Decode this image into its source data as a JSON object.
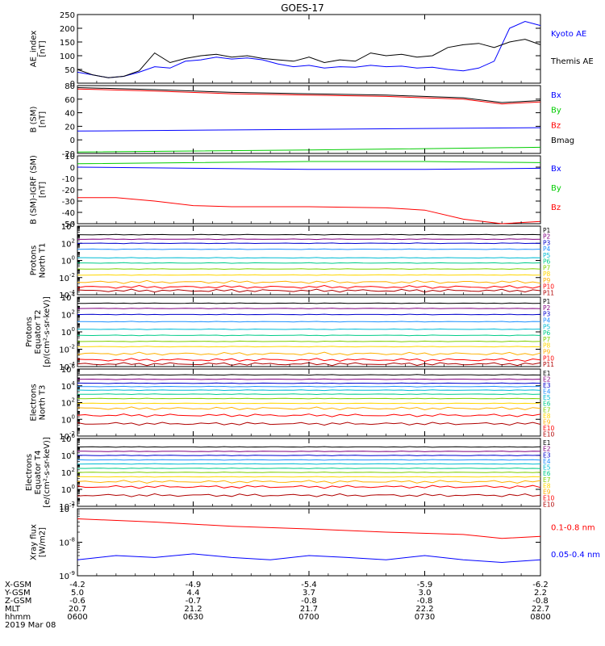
{
  "title": "GOES-17",
  "chart_data": [
    {
      "type": "line",
      "id": "ae",
      "ylabel": [
        "AE_index",
        "[nT]"
      ],
      "ylim": [
        0,
        250
      ],
      "yticks": [
        "0",
        "50",
        "100",
        "150",
        "200",
        "250"
      ],
      "series": [
        {
          "name": "Kyoto AE",
          "color": "#0000ff",
          "x": [
            0,
            4,
            8,
            12,
            16,
            20,
            24,
            28,
            32,
            36,
            40,
            44,
            48,
            52,
            56,
            60,
            64,
            68,
            72,
            76,
            80,
            84,
            88,
            92,
            96,
            100,
            104,
            108,
            112,
            116,
            120
          ],
          "values": [
            40,
            30,
            20,
            25,
            40,
            60,
            55,
            80,
            85,
            95,
            88,
            92,
            85,
            70,
            60,
            65,
            55,
            60,
            58,
            65,
            60,
            62,
            55,
            58,
            50,
            45,
            55,
            80,
            200,
            225,
            210
          ]
        },
        {
          "name": "Themis AE",
          "color": "#000000",
          "x": [
            0,
            4,
            8,
            12,
            16,
            20,
            24,
            28,
            32,
            36,
            40,
            44,
            48,
            52,
            56,
            60,
            64,
            68,
            72,
            76,
            80,
            84,
            88,
            92,
            96,
            100,
            104,
            108,
            112,
            116,
            120
          ],
          "values": [
            50,
            30,
            20,
            25,
            45,
            110,
            75,
            90,
            100,
            105,
            95,
            100,
            90,
            85,
            80,
            95,
            75,
            85,
            80,
            110,
            100,
            105,
            95,
            100,
            130,
            140,
            145,
            130,
            150,
            160,
            140
          ]
        }
      ]
    },
    {
      "type": "line",
      "id": "bsm",
      "ylabel": [
        "B (SM)",
        "[nT]"
      ],
      "ylim": [
        -20,
        80
      ],
      "yticks": [
        "-20",
        "0",
        "20",
        "40",
        "60",
        "80"
      ],
      "series": [
        {
          "name": "Bx",
          "color": "#0000ff",
          "x": [
            0,
            120
          ],
          "values": [
            13,
            18
          ]
        },
        {
          "name": "By",
          "color": "#00cc00",
          "x": [
            0,
            60,
            120
          ],
          "values": [
            -18,
            -15,
            -11
          ]
        },
        {
          "name": "Bz",
          "color": "#ff0000",
          "x": [
            0,
            20,
            40,
            60,
            80,
            100,
            110,
            120
          ],
          "values": [
            75,
            72,
            68,
            66,
            64,
            60,
            53,
            56
          ]
        },
        {
          "name": "Bmag",
          "color": "#000000",
          "x": [
            0,
            20,
            40,
            60,
            80,
            100,
            110,
            120
          ],
          "values": [
            77,
            74,
            70,
            68,
            66,
            62,
            55,
            58
          ]
        }
      ]
    },
    {
      "type": "line",
      "id": "bigrf",
      "ylabel": [
        "B (SM)-IGRF (SM)",
        "[nT]"
      ],
      "ylim": [
        -50,
        10
      ],
      "yticks": [
        "-50",
        "-40",
        "-30",
        "-20",
        "-10",
        "0",
        "10"
      ],
      "series": [
        {
          "name": "Bx",
          "color": "#0000ff",
          "x": [
            0,
            30,
            60,
            90,
            120
          ],
          "values": [
            0,
            -1,
            -2,
            -2,
            -1
          ]
        },
        {
          "name": "By",
          "color": "#00cc00",
          "x": [
            0,
            30,
            60,
            90,
            120
          ],
          "values": [
            3,
            4,
            5,
            5,
            4
          ]
        },
        {
          "name": "Bz",
          "color": "#ff0000",
          "x": [
            0,
            10,
            20,
            30,
            40,
            60,
            80,
            90,
            100,
            110,
            120
          ],
          "values": [
            -27,
            -27,
            -30,
            -34,
            -35,
            -35,
            -36,
            -38,
            -46,
            -50,
            -48
          ]
        }
      ]
    },
    {
      "type": "line",
      "id": "protonsT1",
      "ylabel": [
        "Protons",
        "North T1"
      ],
      "log": true,
      "ylim": [
        0.0001,
        10000
      ],
      "yticks": [
        "10^-4",
        "10^-2",
        "10^0",
        "10^2",
        "10^4"
      ],
      "channels": [
        {
          "name": "P1",
          "color": "#000000",
          "value": 1000
        },
        {
          "name": "P2",
          "color": "#800080",
          "value": 300
        },
        {
          "name": "P3",
          "color": "#0000cd",
          "value": 100
        },
        {
          "name": "P4",
          "color": "#1e90ff",
          "value": 20
        },
        {
          "name": "P5",
          "color": "#00bcd4",
          "value": 2
        },
        {
          "name": "P6",
          "color": "#00cc88",
          "value": 0.5
        },
        {
          "name": "P7",
          "color": "#7fd000",
          "value": 0.1
        },
        {
          "name": "P8",
          "color": "#ffd700",
          "value": 0.02
        },
        {
          "name": "P9",
          "color": "#ffb000",
          "value": 0.003
        },
        {
          "name": "P10",
          "color": "#ff0000",
          "value": 0.0008
        },
        {
          "name": "P11",
          "color": "#b00000",
          "value": 0.0003
        }
      ]
    },
    {
      "type": "line",
      "id": "protonsT2",
      "ylabel": [
        "Protons",
        "Equator T2",
        "[p/(cm²-s-sr-keV)]"
      ],
      "log": true,
      "ylim": [
        0.0001,
        10000
      ],
      "yticks": [
        "10^-4",
        "10^-2",
        "10^0",
        "10^2",
        "10^4"
      ],
      "channels": [
        {
          "name": "P1",
          "color": "#000000",
          "value": 2000
        },
        {
          "name": "P2",
          "color": "#800080",
          "value": 500
        },
        {
          "name": "P3",
          "color": "#0000cd",
          "value": 100
        },
        {
          "name": "P4",
          "color": "#1e90ff",
          "value": 15
        },
        {
          "name": "P5",
          "color": "#00bcd4",
          "value": 2
        },
        {
          "name": "P6",
          "color": "#00cc88",
          "value": 0.4
        },
        {
          "name": "P7",
          "color": "#7fd000",
          "value": 0.08
        },
        {
          "name": "P8",
          "color": "#ffd700",
          "value": 0.02
        },
        {
          "name": "P9",
          "color": "#ffb000",
          "value": 0.003
        },
        {
          "name": "P10",
          "color": "#ff0000",
          "value": 0.0006
        },
        {
          "name": "P11",
          "color": "#b00000",
          "value": 0.0002
        }
      ]
    },
    {
      "type": "line",
      "id": "electronsT3",
      "ylabel": [
        "Electrons",
        "North T3"
      ],
      "log": true,
      "ylim": [
        0.01,
        1000000
      ],
      "yticks": [
        "10^-2",
        "10^0",
        "10^2",
        "10^4",
        "10^6"
      ],
      "channels": [
        {
          "name": "E1",
          "color": "#000000",
          "value": 200000
        },
        {
          "name": "E2",
          "color": "#800080",
          "value": 60000
        },
        {
          "name": "E3",
          "color": "#0000cd",
          "value": 20000
        },
        {
          "name": "E4",
          "color": "#1e90ff",
          "value": 8000
        },
        {
          "name": "E5",
          "color": "#00bcd4",
          "value": 3000
        },
        {
          "name": "E6",
          "color": "#00cc88",
          "value": 1000
        },
        {
          "name": "E7",
          "color": "#7fd000",
          "value": 300
        },
        {
          "name": "E8",
          "color": "#ffd700",
          "value": 80
        },
        {
          "name": "E9",
          "color": "#ffb000",
          "value": 20
        },
        {
          "name": "E10",
          "color": "#ff0000",
          "value": 3
        },
        {
          "name": "E10",
          "color": "#b00000",
          "value": 0.3
        }
      ]
    },
    {
      "type": "line",
      "id": "electronsT4",
      "ylabel": [
        "Electrons",
        "Equator T4",
        "[e/(cm²-s-sr-keV)]"
      ],
      "log": true,
      "ylim": [
        0.01,
        1000000
      ],
      "yticks": [
        "10^-2",
        "10^0",
        "10^2",
        "10^4",
        "10^6"
      ],
      "channels": [
        {
          "name": "E1",
          "color": "#000000",
          "value": 100000
        },
        {
          "name": "E2",
          "color": "#800080",
          "value": 30000
        },
        {
          "name": "E3",
          "color": "#0000cd",
          "value": 10000
        },
        {
          "name": "E4",
          "color": "#1e90ff",
          "value": 3000
        },
        {
          "name": "E5",
          "color": "#00bcd4",
          "value": 1000
        },
        {
          "name": "E6",
          "color": "#00cc88",
          "value": 300
        },
        {
          "name": "E7",
          "color": "#7fd000",
          "value": 100
        },
        {
          "name": "E8",
          "color": "#ffd700",
          "value": 30
        },
        {
          "name": "E9",
          "color": "#ffb000",
          "value": 8
        },
        {
          "name": "E10",
          "color": "#ff0000",
          "value": 2
        },
        {
          "name": "E10",
          "color": "#b00000",
          "value": 0.2
        }
      ]
    },
    {
      "type": "line",
      "id": "xray",
      "ylabel": [
        "Xray flux",
        "[W/m2]"
      ],
      "log": true,
      "ylim": [
        1e-09,
        1e-07
      ],
      "yticks": [
        "10^-9",
        "10^-8",
        "10^-7"
      ],
      "series": [
        {
          "name": "0.1-0.8 nm",
          "color": "#ff0000",
          "x": [
            0,
            20,
            40,
            60,
            80,
            100,
            110,
            120
          ],
          "values": [
            5e-08,
            4e-08,
            3e-08,
            2.5e-08,
            2e-08,
            1.7e-08,
            1.3e-08,
            1.5e-08
          ]
        },
        {
          "name": "0.05-0.4 nm",
          "color": "#0000ff",
          "x": [
            0,
            10,
            20,
            30,
            40,
            50,
            60,
            70,
            80,
            90,
            100,
            110,
            120
          ],
          "values": [
            3e-09,
            4e-09,
            3.5e-09,
            4.5e-09,
            3.5e-09,
            3e-09,
            4e-09,
            3.5e-09,
            3e-09,
            4e-09,
            3e-09,
            2.5e-09,
            3e-09
          ]
        }
      ]
    }
  ],
  "xaxis": {
    "row_labels": [
      "X-GSM",
      "Y-GSM",
      "Z-GSM",
      "MLT",
      "hhmm"
    ],
    "date": "2019 Mar 08",
    "ticks": [
      {
        "minutes": 0,
        "values": [
          "-4.2",
          "5.0",
          "-0.6",
          "20.7",
          "0600"
        ]
      },
      {
        "minutes": 30,
        "values": [
          "-4.9",
          "4.4",
          "-0.7",
          "21.2",
          "0630"
        ]
      },
      {
        "minutes": 60,
        "values": [
          "-5.4",
          "3.7",
          "-0.8",
          "21.7",
          "0700"
        ]
      },
      {
        "minutes": 90,
        "values": [
          "-5.9",
          "3.0",
          "-0.8",
          "22.2",
          "0730"
        ]
      },
      {
        "minutes": 120,
        "values": [
          "-6.2",
          "2.2",
          "-0.8",
          "22.7",
          "0800"
        ]
      }
    ]
  }
}
